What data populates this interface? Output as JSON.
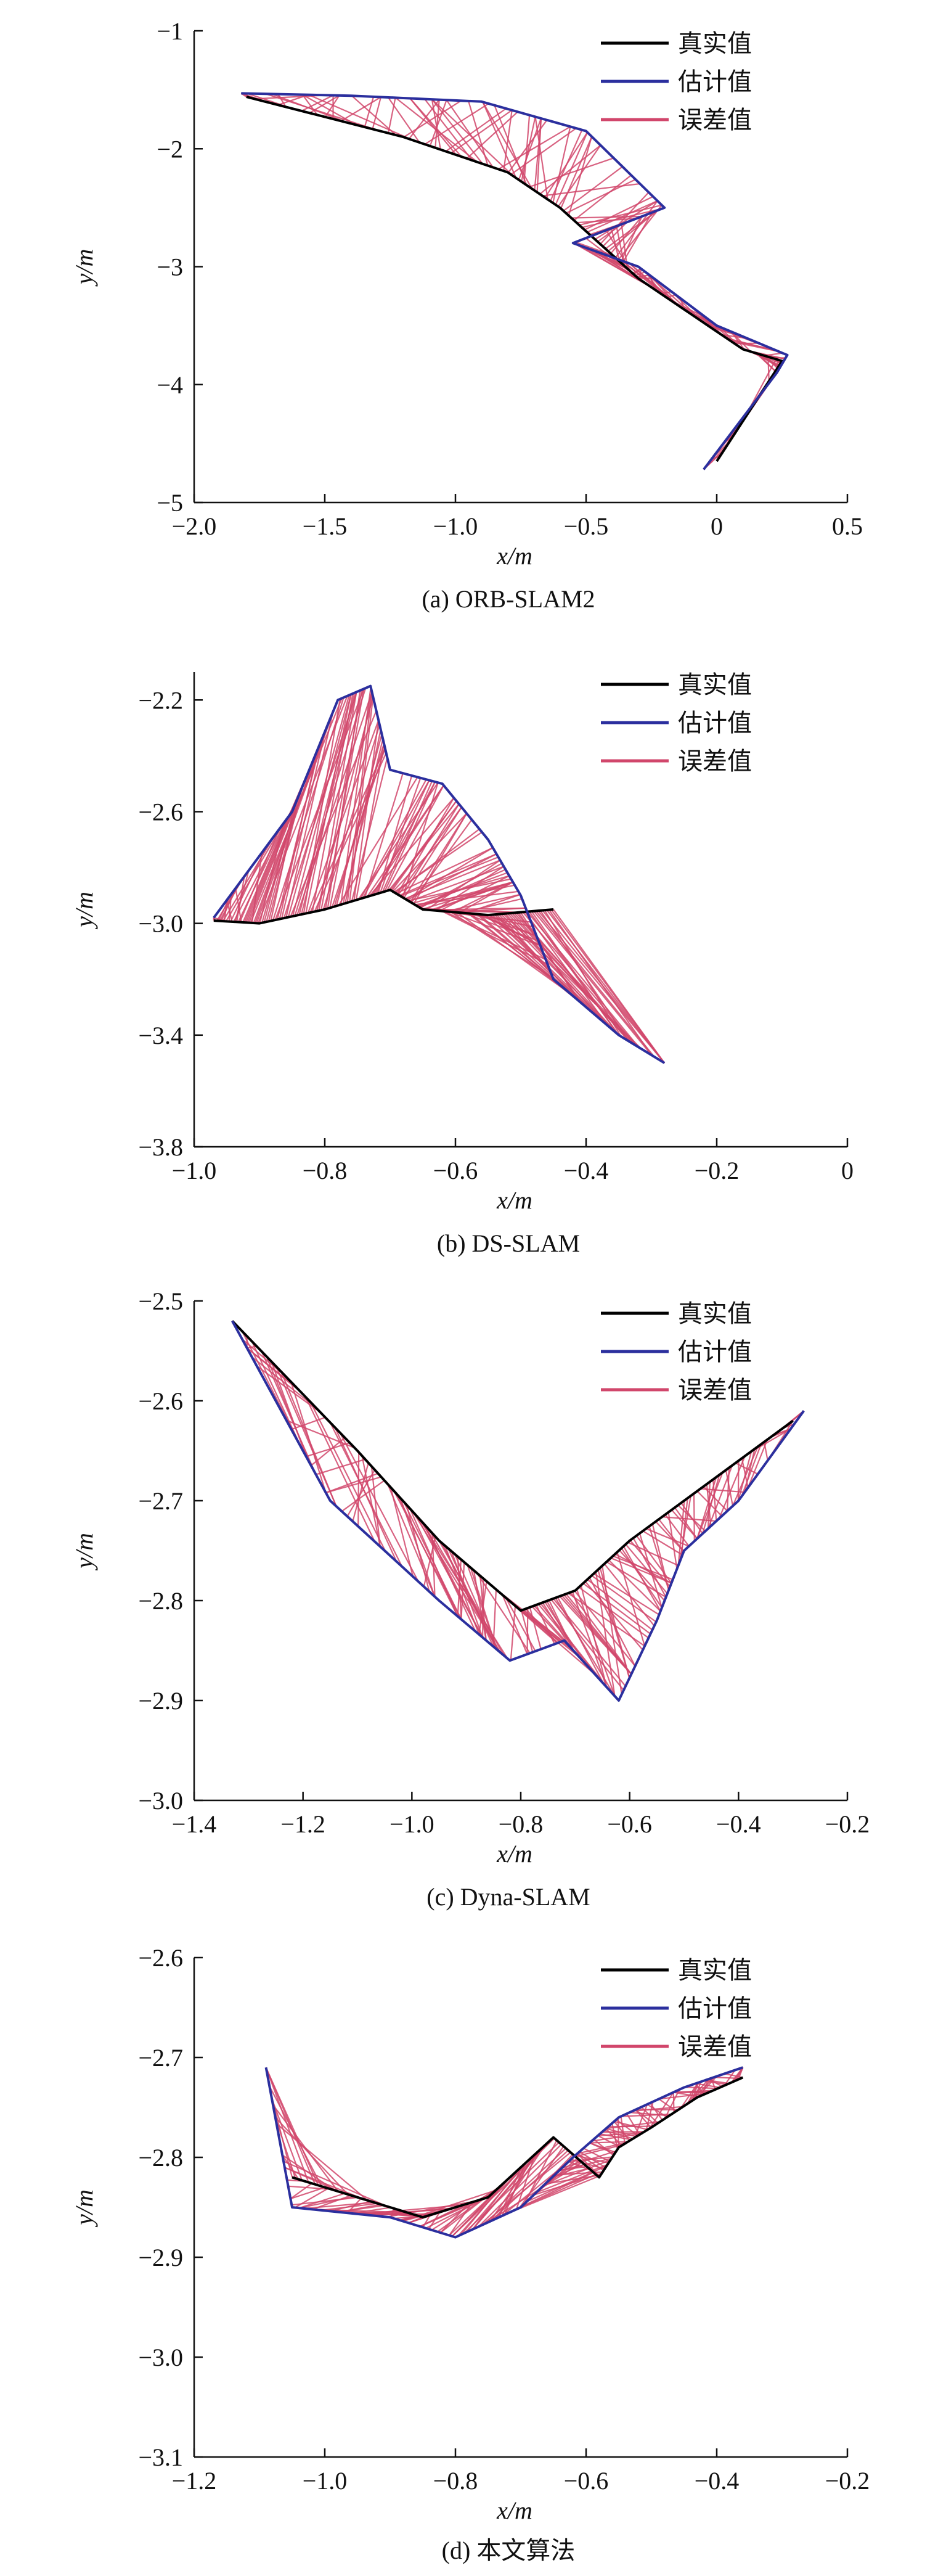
{
  "chart_data": [
    {
      "type": "line",
      "caption": "(a) ORB-SLAM2",
      "xlabel": "x/m",
      "ylabel": "y/m",
      "xlim": [
        -2.0,
        0.5
      ],
      "ylim": [
        -5,
        -1
      ],
      "xticks": [
        -2.0,
        -1.5,
        -1.0,
        -0.5,
        0,
        0.5
      ],
      "xtick_labels": [
        "−2.0",
        "−1.5",
        "−1.0",
        "−0.5",
        "0",
        "0.5"
      ],
      "yticks": [
        -5,
        -4,
        -3,
        -2,
        -1
      ],
      "ytick_labels": [
        "−5",
        "−4",
        "−3",
        "−2",
        "−1"
      ],
      "legend": [
        "真实值",
        "估计值",
        "误差值"
      ],
      "legend_position": "top-right",
      "series": [
        {
          "name": "真实值",
          "color": "#000000",
          "x": [
            -1.8,
            -1.2,
            -0.8,
            -0.6,
            -0.4,
            -0.3,
            -0.1,
            0.1,
            0.25,
            0.0
          ],
          "y": [
            -1.56,
            -1.9,
            -2.2,
            -2.5,
            -2.9,
            -3.1,
            -3.4,
            -3.7,
            -3.8,
            -4.65
          ]
        },
        {
          "name": "估计值",
          "color": "#2b2f9e",
          "x": [
            -1.82,
            -1.4,
            -0.9,
            -0.5,
            -0.2,
            -0.55,
            -0.3,
            0.0,
            0.27,
            0.23,
            -0.05
          ],
          "y": [
            -1.53,
            -1.55,
            -1.6,
            -1.85,
            -2.5,
            -2.8,
            -3.0,
            -3.5,
            -3.75,
            -3.9,
            -4.72
          ]
        },
        {
          "name": "误差值",
          "color": "#d1466b"
        }
      ]
    },
    {
      "type": "line",
      "caption": "(b) DS-SLAM",
      "xlabel": "x/m",
      "ylabel": "y/m",
      "xlim": [
        -1.0,
        0
      ],
      "ylim": [
        -3.8,
        -2.1
      ],
      "xticks": [
        -1.0,
        -0.8,
        -0.6,
        -0.4,
        -0.2,
        0
      ],
      "xtick_labels": [
        "−1.0",
        "−0.8",
        "−0.6",
        "−0.4",
        "−0.2",
        "0"
      ],
      "yticks": [
        -3.8,
        -3.4,
        -3.0,
        -2.6,
        -2.2
      ],
      "ytick_labels": [
        "−3.8",
        "−3.4",
        "−3.0",
        "−2.6",
        "−2.2"
      ],
      "legend": [
        "真实值",
        "估计值",
        "误差值"
      ],
      "legend_position": "top-right",
      "series": [
        {
          "name": "真实值",
          "color": "#000000",
          "x": [
            -0.97,
            -0.9,
            -0.8,
            -0.7,
            -0.65,
            -0.55,
            -0.45
          ],
          "y": [
            -2.99,
            -3.0,
            -2.95,
            -2.88,
            -2.95,
            -2.97,
            -2.95
          ]
        },
        {
          "name": "估计值",
          "color": "#2b2f9e",
          "x": [
            -0.97,
            -0.85,
            -0.78,
            -0.73,
            -0.7,
            -0.62,
            -0.55,
            -0.5,
            -0.45,
            -0.35,
            -0.28
          ],
          "y": [
            -2.98,
            -2.6,
            -2.2,
            -2.15,
            -2.45,
            -2.5,
            -2.7,
            -2.9,
            -3.2,
            -3.4,
            -3.5
          ]
        },
        {
          "name": "误差值",
          "color": "#d1466b"
        }
      ]
    },
    {
      "type": "line",
      "caption": "(c) Dyna-SLAM",
      "xlabel": "x/m",
      "ylabel": "y/m",
      "xlim": [
        -1.4,
        -0.2
      ],
      "ylim": [
        -3.0,
        -2.5
      ],
      "xticks": [
        -1.4,
        -1.2,
        -1.0,
        -0.8,
        -0.6,
        -0.4,
        -0.2
      ],
      "xtick_labels": [
        "−1.4",
        "−1.2",
        "−1.0",
        "−0.8",
        "−0.6",
        "−0.4",
        "−0.2"
      ],
      "yticks": [
        -3.0,
        -2.9,
        -2.8,
        -2.7,
        -2.6,
        -2.5
      ],
      "ytick_labels": [
        "−3.0",
        "−2.9",
        "−2.8",
        "−2.7",
        "−2.6",
        "−2.5"
      ],
      "legend": [
        "真实值",
        "估计值",
        "误差值"
      ],
      "legend_position": "top-right",
      "series": [
        {
          "name": "真实值",
          "color": "#000000",
          "x": [
            -1.33,
            -1.1,
            -0.95,
            -0.8,
            -0.7,
            -0.6,
            -0.45,
            -0.3
          ],
          "y": [
            -2.52,
            -2.65,
            -2.74,
            -2.81,
            -2.79,
            -2.74,
            -2.68,
            -2.62
          ]
        },
        {
          "name": "估计值",
          "color": "#2b2f9e",
          "x": [
            -1.33,
            -1.15,
            -0.95,
            -0.82,
            -0.72,
            -0.62,
            -0.55,
            -0.5,
            -0.4,
            -0.28
          ],
          "y": [
            -2.52,
            -2.7,
            -2.8,
            -2.86,
            -2.84,
            -2.9,
            -2.82,
            -2.75,
            -2.7,
            -2.61
          ]
        },
        {
          "name": "误差值",
          "color": "#d1466b"
        }
      ]
    },
    {
      "type": "line",
      "caption": "(d) 本文算法",
      "xlabel": "x/m",
      "ylabel": "y/m",
      "xlim": [
        -1.2,
        -0.2
      ],
      "ylim": [
        -3.1,
        -2.6
      ],
      "xticks": [
        -1.2,
        -1.0,
        -0.8,
        -0.6,
        -0.4,
        -0.2
      ],
      "xtick_labels": [
        "−1.2",
        "−1.0",
        "−0.8",
        "−0.6",
        "−0.4",
        "−0.2"
      ],
      "yticks": [
        -3.1,
        -3.0,
        -2.9,
        -2.8,
        -2.7,
        -2.6
      ],
      "ytick_labels": [
        "−3.1",
        "−3.0",
        "−2.9",
        "−2.8",
        "−2.7",
        "−2.6"
      ],
      "legend": [
        "真实值",
        "估计值",
        "误差值"
      ],
      "legend_position": "top-right",
      "series": [
        {
          "name": "真实值",
          "color": "#000000",
          "x": [
            -1.05,
            -0.95,
            -0.85,
            -0.75,
            -0.65,
            -0.58,
            -0.55,
            -0.5,
            -0.43,
            -0.36
          ],
          "y": [
            -2.82,
            -2.84,
            -2.86,
            -2.84,
            -2.78,
            -2.82,
            -2.79,
            -2.77,
            -2.74,
            -2.72
          ]
        },
        {
          "name": "估计值",
          "color": "#2b2f9e",
          "x": [
            -1.09,
            -1.05,
            -0.9,
            -0.8,
            -0.7,
            -0.62,
            -0.55,
            -0.45,
            -0.36
          ],
          "y": [
            -2.71,
            -2.85,
            -2.86,
            -2.88,
            -2.85,
            -2.8,
            -2.76,
            -2.73,
            -2.71
          ]
        },
        {
          "name": "误差值",
          "color": "#d1466b"
        }
      ]
    }
  ]
}
